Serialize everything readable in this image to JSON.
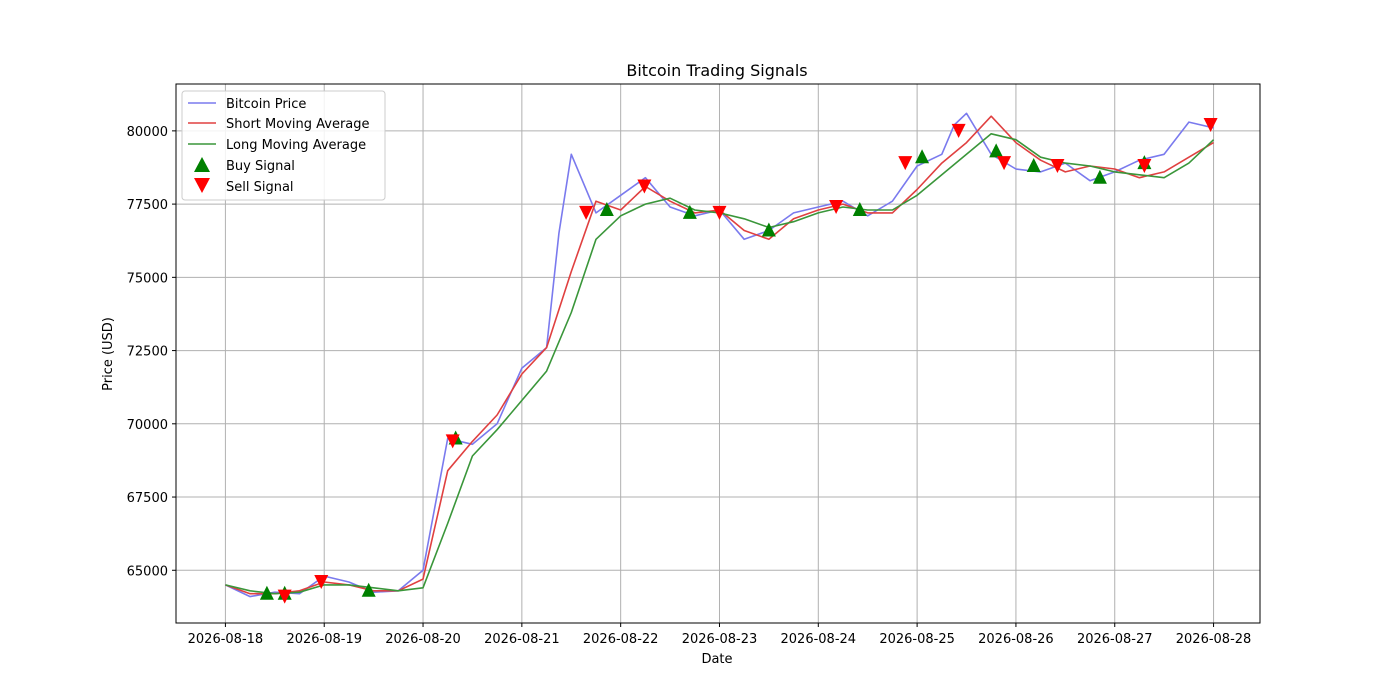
{
  "chart_data": {
    "type": "line",
    "title": "Bitcoin Trading Signals",
    "xlabel": "Date",
    "ylabel": "Price (USD)",
    "x_ticks": [
      "2026-08-18",
      "2026-08-19",
      "2026-08-20",
      "2026-08-21",
      "2026-08-22",
      "2026-08-23",
      "2026-08-24",
      "2026-08-25",
      "2026-08-26",
      "2026-08-27",
      "2026-08-28"
    ],
    "y_ticks": [
      "65000",
      "67500",
      "70000",
      "72500",
      "75000",
      "77500",
      "80000"
    ],
    "xlim": [
      -0.5,
      10.47
    ],
    "ylim": [
      63200,
      81600
    ],
    "grid": true,
    "legend_position": "top-left",
    "colors": {
      "price": "#7a7aee",
      "short_ma": "#e04040",
      "long_ma": "#3a963a",
      "buy": "#008000",
      "sell": "#ff0000",
      "grid": "#b0b0b0"
    },
    "series": [
      {
        "name": "Bitcoin Price",
        "x": [
          0,
          0.25,
          0.5,
          0.75,
          1,
          1.25,
          1.5,
          1.75,
          2,
          2.25,
          2.5,
          2.75,
          3,
          3.25,
          3.375,
          3.5,
          3.75,
          4,
          4.25,
          4.5,
          4.75,
          5,
          5.25,
          5.5,
          5.75,
          6,
          6.25,
          6.5,
          6.75,
          7,
          7.25,
          7.375,
          7.5,
          7.75,
          8,
          8.25,
          8.5,
          8.75,
          9,
          9.25,
          9.5,
          9.75,
          10
        ],
        "y": [
          64500,
          64100,
          64250,
          64200,
          64800,
          64600,
          64250,
          64300,
          65000,
          69500,
          69300,
          70000,
          71900,
          72600,
          76500,
          79200,
          77200,
          77800,
          78400,
          77400,
          77100,
          77300,
          76300,
          76600,
          77200,
          77400,
          77600,
          77100,
          77600,
          78800,
          79200,
          80200,
          80600,
          79200,
          78700,
          78600,
          78900,
          78300,
          78600,
          79000,
          79200,
          80300,
          80100
        ]
      },
      {
        "name": "Short Moving Average",
        "x": [
          0,
          0.25,
          0.5,
          0.75,
          1,
          1.25,
          1.5,
          1.75,
          2,
          2.25,
          2.5,
          2.75,
          3,
          3.25,
          3.5,
          3.75,
          4,
          4.25,
          4.5,
          4.75,
          5,
          5.25,
          5.5,
          5.75,
          6,
          6.25,
          6.5,
          6.75,
          7,
          7.25,
          7.5,
          7.75,
          8,
          8.25,
          8.5,
          8.75,
          9,
          9.25,
          9.5,
          9.75,
          10
        ],
        "y": [
          64500,
          64200,
          64200,
          64300,
          64600,
          64500,
          64300,
          64300,
          64700,
          68400,
          69400,
          70300,
          71700,
          72600,
          75200,
          77600,
          77300,
          78100,
          77600,
          77200,
          77300,
          76600,
          76300,
          77000,
          77300,
          77500,
          77200,
          77200,
          78000,
          78900,
          79600,
          80500,
          79600,
          79000,
          78600,
          78800,
          78700,
          78400,
          78600,
          79100,
          79600
        ]
      },
      {
        "name": "Long Moving Average",
        "x": [
          0,
          0.25,
          0.5,
          0.75,
          1,
          1.25,
          1.5,
          1.75,
          2,
          2.25,
          2.5,
          2.75,
          3,
          3.25,
          3.5,
          3.75,
          4,
          4.25,
          4.5,
          4.75,
          5,
          5.25,
          5.5,
          5.75,
          6,
          6.25,
          6.5,
          6.75,
          7,
          7.25,
          7.5,
          7.75,
          8,
          8.25,
          8.5,
          8.75,
          9,
          9.25,
          9.5,
          9.75,
          10
        ],
        "y": [
          64500,
          64300,
          64200,
          64250,
          64500,
          64500,
          64400,
          64300,
          64400,
          66600,
          68900,
          69800,
          70800,
          71800,
          73800,
          76300,
          77100,
          77500,
          77700,
          77300,
          77200,
          77000,
          76700,
          76900,
          77200,
          77400,
          77300,
          77300,
          77800,
          78500,
          79200,
          79900,
          79700,
          79100,
          78900,
          78800,
          78600,
          78500,
          78400,
          78900,
          79700
        ]
      }
    ],
    "buy_signals": {
      "name": "Buy Signal",
      "x": [
        0.42,
        0.6,
        1.45,
        2.33,
        3.86,
        4.7,
        5.5,
        6.42,
        7.05,
        7.8,
        8.18,
        8.85,
        9.3
      ],
      "y": [
        64200,
        64200,
        64300,
        69500,
        77300,
        77200,
        76600,
        77300,
        79100,
        79300,
        78800,
        78400,
        78900
      ]
    },
    "sell_signals": {
      "name": "Sell Signal",
      "x": [
        0.6,
        0.97,
        2.3,
        3.65,
        4.24,
        5.0,
        6.18,
        6.88,
        7.42,
        7.88,
        8.42,
        9.3,
        9.97
      ],
      "y": [
        64100,
        64600,
        69400,
        77200,
        78100,
        77200,
        77400,
        78900,
        80000,
        78900,
        78800,
        78800,
        80200
      ]
    }
  }
}
